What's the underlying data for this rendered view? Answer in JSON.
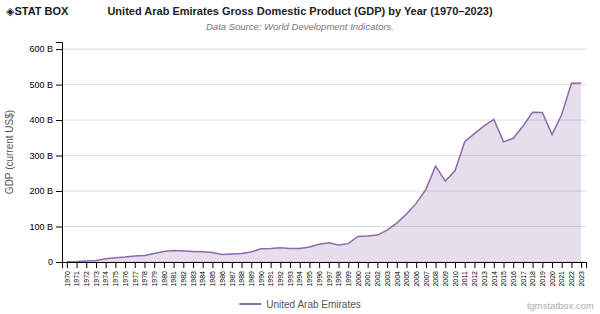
{
  "chart_data": {
    "type": "area",
    "title": "United Arab Emirates Gross Domestic Product (GDP) by Year (1970–2023)",
    "subtitle": "Data Source: World Development Indicators.",
    "ylabel": "GDP (current US$)",
    "annotations": [
      "◈STAT",
      "BOX",
      "tgmstatbox.com"
    ],
    "x": [
      1970,
      1971,
      1972,
      1973,
      1974,
      1975,
      1976,
      1977,
      1978,
      1979,
      1980,
      1981,
      1982,
      1983,
      1984,
      1985,
      1986,
      1987,
      1988,
      1989,
      1990,
      1991,
      1992,
      1993,
      1994,
      1995,
      1996,
      1997,
      1998,
      1999,
      2000,
      2001,
      2002,
      2003,
      2004,
      2005,
      2006,
      2007,
      2008,
      2009,
      2010,
      2011,
      2012,
      2013,
      2014,
      2015,
      2016,
      2017,
      2018,
      2019,
      2020,
      2021,
      2022,
      2023
    ],
    "series": [
      {
        "name": "United Arab Emirates",
        "color": "#8b6aad",
        "values": [
          0.91,
          1.39,
          2.7,
          4.52,
          9.28,
          11.82,
          13.82,
          16.73,
          18.26,
          24.24,
          29.62,
          32.1,
          30.76,
          29.65,
          28.98,
          27.04,
          21.23,
          22.89,
          24.28,
          27.95,
          37.47,
          38.16,
          40.06,
          37.84,
          37.88,
          42.21,
          50.1,
          53.97,
          48.0,
          51.8,
          72.06,
          73.09,
          75.82,
          89.74,
          109.52,
          135.13,
          165.15,
          204.57,
          269.98,
          228.0,
          257.0,
          339.0,
          361.89,
          383.8,
          401.65,
          338.44,
          348.74,
          382.57,
          422.22,
          421.14,
          358.87,
          415.6,
          503.96,
          504.17
        ]
      }
    ],
    "xlim": [
      1969.5,
      2023.5
    ],
    "xticks": [
      1970,
      1971,
      1972,
      1973,
      1974,
      1975,
      1976,
      1977,
      1978,
      1979,
      1980,
      1981,
      1982,
      1983,
      1984,
      1985,
      1986,
      1987,
      1988,
      1989,
      1990,
      1991,
      1992,
      1993,
      1994,
      1995,
      1996,
      1997,
      1998,
      1999,
      2000,
      2001,
      2002,
      2003,
      2004,
      2005,
      2006,
      2007,
      2008,
      2009,
      2010,
      2011,
      2012,
      2013,
      2014,
      2015,
      2016,
      2017,
      2018,
      2019,
      2020,
      2021,
      2022,
      2023
    ],
    "ylim": [
      0,
      620
    ],
    "yticks": [
      0,
      {
        "value": 100,
        "label": "100 B"
      },
      {
        "value": 200,
        "label": "200 B"
      },
      {
        "value": 300,
        "label": "300 B"
      },
      {
        "value": 400,
        "label": "400 B"
      },
      {
        "value": 500,
        "label": "500 B"
      },
      {
        "value": 600,
        "label": "600 B"
      }
    ],
    "grid": true,
    "legend": "bottom"
  }
}
